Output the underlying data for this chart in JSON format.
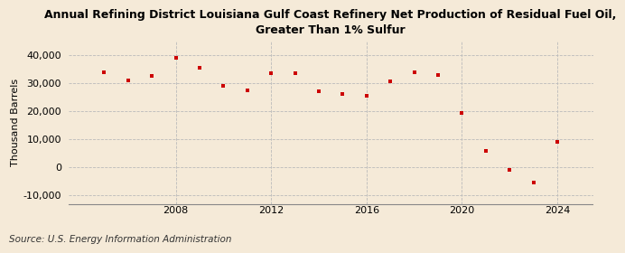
{
  "title": "Annual Refining District Louisiana Gulf Coast Refinery Net Production of Residual Fuel Oil,\nGreater Than 1% Sulfur",
  "ylabel": "Thousand Barrels",
  "source": "Source: U.S. Energy Information Administration",
  "background_color": "#f5ead8",
  "plot_bg_color": "#f5ead8",
  "grid_color": "#bbbbbb",
  "marker_color": "#cc0000",
  "years": [
    2005,
    2006,
    2007,
    2008,
    2009,
    2010,
    2011,
    2012,
    2013,
    2014,
    2015,
    2016,
    2017,
    2018,
    2019,
    2020,
    2021,
    2022,
    2023,
    2024
  ],
  "values": [
    34000,
    31000,
    32500,
    39000,
    35500,
    29000,
    27500,
    33500,
    33500,
    27000,
    26000,
    25500,
    30500,
    34000,
    33000,
    19500,
    6000,
    -1000,
    -5500,
    9000
  ],
  "ylim": [
    -13000,
    45000
  ],
  "yticks": [
    -10000,
    0,
    10000,
    20000,
    30000,
    40000
  ],
  "xticks": [
    2008,
    2012,
    2016,
    2020,
    2024
  ],
  "xlim": [
    2003.5,
    2025.5
  ],
  "title_fontsize": 9,
  "label_fontsize": 8,
  "tick_fontsize": 8,
  "source_fontsize": 7.5
}
